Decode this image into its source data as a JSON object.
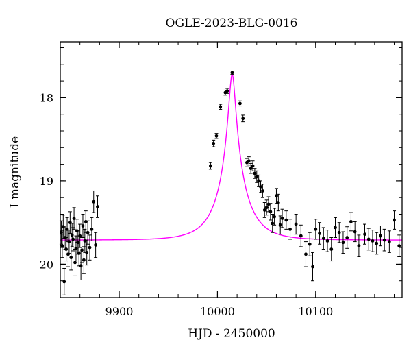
{
  "chart_data": {
    "type": "scatter",
    "title": "OGLE-2023-BLG-0016",
    "xlabel": "HJD - 2450000",
    "ylabel": "I magnitude",
    "xlim": [
      9840,
      10188
    ],
    "ylim": [
      20.4,
      17.33
    ],
    "y_inverted": true,
    "x_ticks": [
      9900,
      10000,
      10100
    ],
    "y_ticks": [
      18,
      19,
      20
    ],
    "x_minor_step": 20,
    "y_minor_step": 0.2,
    "grid": false,
    "legend": "none",
    "colors": {
      "points": "#000000",
      "model": "#ff00ff",
      "frame": "#000000"
    },
    "model": {
      "name": "",
      "t0": 10015,
      "tE": 28,
      "u0": 0.115,
      "baseline_mag": 19.71,
      "peak_mag": 17.72,
      "blend_fraction": 1.0
    },
    "series": [
      {
        "type": "scatter_errorbar",
        "x": [
          9841,
          9842,
          9843,
          9844,
          9845,
          9846,
          9847,
          9848,
          9849,
          9850,
          9851,
          9852,
          9853,
          9854,
          9855,
          9856,
          9857,
          9858,
          9859,
          9860,
          9861,
          9862,
          9863,
          9864,
          9865,
          9866,
          9867,
          9868,
          9870,
          9872,
          9874,
          9876,
          9878,
          9993,
          9996,
          9999,
          10003,
          10008,
          10010,
          10015,
          10023,
          10026,
          10030,
          10032,
          10034,
          10036,
          10038,
          10040,
          10042,
          10044,
          10046,
          10048,
          10050,
          10052,
          10054,
          10056,
          10058,
          10060,
          10062,
          10064,
          10066,
          10070,
          10074,
          10080,
          10085,
          10090,
          10094,
          10097,
          10100,
          10104,
          10108,
          10112,
          10116,
          10120,
          10124,
          10128,
          10132,
          10136,
          10140,
          10144,
          10150,
          10154,
          10158,
          10162,
          10166,
          10170,
          10175,
          10180,
          10185
        ],
        "y": [
          19.62,
          19.78,
          19.55,
          20.21,
          19.68,
          19.82,
          19.58,
          19.88,
          19.73,
          19.5,
          19.92,
          19.65,
          19.7,
          19.45,
          19.98,
          19.81,
          19.6,
          19.74,
          19.87,
          19.66,
          20.02,
          19.83,
          19.54,
          19.95,
          19.72,
          19.49,
          19.86,
          19.62,
          19.8,
          19.58,
          19.25,
          19.77,
          19.31,
          18.82,
          18.55,
          18.46,
          18.11,
          17.94,
          17.92,
          17.7,
          18.07,
          18.25,
          18.78,
          18.76,
          18.85,
          18.82,
          18.91,
          18.95,
          19.0,
          19.07,
          19.12,
          19.35,
          19.32,
          19.28,
          19.37,
          19.51,
          19.43,
          19.18,
          19.26,
          19.53,
          19.45,
          19.47,
          19.58,
          19.52,
          19.66,
          19.88,
          19.76,
          20.03,
          19.58,
          19.63,
          19.69,
          19.72,
          19.82,
          19.56,
          19.62,
          19.74,
          19.68,
          19.49,
          19.61,
          19.78,
          19.64,
          19.7,
          19.72,
          19.75,
          19.66,
          19.71,
          19.73,
          19.47,
          19.78
        ],
        "err": [
          0.14,
          0.14,
          0.14,
          0.16,
          0.14,
          0.14,
          0.14,
          0.15,
          0.14,
          0.13,
          0.15,
          0.14,
          0.14,
          0.13,
          0.16,
          0.15,
          0.14,
          0.14,
          0.15,
          0.14,
          0.17,
          0.15,
          0.14,
          0.16,
          0.14,
          0.13,
          0.15,
          0.14,
          0.15,
          0.14,
          0.13,
          0.15,
          0.13,
          0.04,
          0.04,
          0.03,
          0.03,
          0.03,
          0.03,
          0.02,
          0.03,
          0.04,
          0.05,
          0.05,
          0.06,
          0.06,
          0.06,
          0.07,
          0.07,
          0.07,
          0.08,
          0.09,
          0.09,
          0.09,
          0.1,
          0.11,
          0.1,
          0.09,
          0.1,
          0.11,
          0.11,
          0.11,
          0.12,
          0.12,
          0.13,
          0.15,
          0.14,
          0.17,
          0.12,
          0.13,
          0.13,
          0.13,
          0.14,
          0.12,
          0.12,
          0.13,
          0.13,
          0.11,
          0.12,
          0.13,
          0.12,
          0.13,
          0.13,
          0.13,
          0.12,
          0.13,
          0.13,
          0.11,
          0.13
        ]
      }
    ]
  }
}
